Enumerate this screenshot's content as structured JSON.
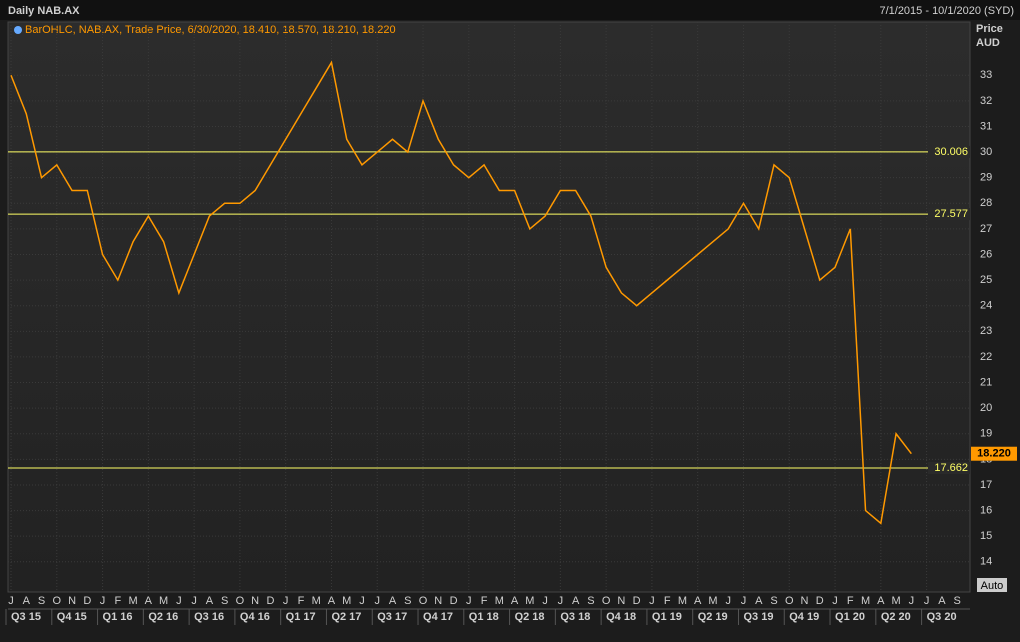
{
  "chart_data": {
    "type": "line",
    "title": "Daily NAB.AX",
    "date_range": "7/1/2015 - 10/1/2020 (SYD)",
    "legend_text": "BarOHLC, NAB.AX, Trade Price, 6/30/2020, 18.410, 18.570, 18.210, 18.220",
    "axis_label": "Price",
    "axis_unit": "AUD",
    "scale_button": "Auto",
    "categories": [
      "J",
      "A",
      "S",
      "O",
      "N",
      "D",
      "J",
      "F",
      "M",
      "A",
      "M",
      "J",
      "J",
      "A",
      "S",
      "O",
      "N",
      "D",
      "J",
      "F",
      "M",
      "A",
      "M",
      "J",
      "J",
      "A",
      "S",
      "O",
      "N",
      "D",
      "J",
      "F",
      "M",
      "A",
      "M",
      "J",
      "J",
      "A",
      "S",
      "O",
      "N",
      "D",
      "J",
      "F",
      "M",
      "A",
      "M",
      "J",
      "J",
      "A",
      "S",
      "O",
      "N",
      "D",
      "J",
      "F",
      "M",
      "A",
      "M",
      "J",
      "J",
      "A",
      "S"
    ],
    "quarters": [
      "Q3 15",
      "Q4 15",
      "Q1 16",
      "Q2 16",
      "Q3 16",
      "Q4 16",
      "Q1 17",
      "Q2 17",
      "Q3 17",
      "Q4 17",
      "Q1 18",
      "Q2 18",
      "Q3 18",
      "Q4 18",
      "Q1 19",
      "Q2 19",
      "Q3 19",
      "Q4 19",
      "Q1 20",
      "Q2 20",
      "Q3 20"
    ],
    "series": [
      {
        "name": "NAB.AX",
        "color": "#ff9900",
        "values": [
          33,
          31.5,
          29,
          29.5,
          28.5,
          28.5,
          26,
          25,
          26.5,
          27.5,
          26.5,
          24.5,
          26,
          27.5,
          28,
          28,
          28.5,
          29.5,
          30.5,
          31.5,
          32.5,
          33.5,
          30.5,
          29.5,
          30,
          30.5,
          30,
          32,
          30.5,
          29.5,
          29,
          29.5,
          28.5,
          28.5,
          27,
          27.5,
          28.5,
          28.5,
          27.5,
          25.5,
          24.5,
          24,
          24.5,
          25,
          25.5,
          26,
          26.5,
          27,
          28,
          27,
          29.5,
          29,
          27,
          25,
          25.5,
          27,
          16,
          15.5,
          19,
          18.22,
          null,
          null,
          null
        ]
      }
    ],
    "levels": [
      30.006,
      27.577,
      17.662
    ],
    "level_color": "#ffff66",
    "last_price": {
      "value": 18.22,
      "label": "18.220"
    },
    "ylim": [
      12.82,
      35.08
    ],
    "yticks": [
      14,
      15,
      16,
      17,
      18,
      19,
      20,
      21,
      22,
      23,
      24,
      25,
      26,
      27,
      28,
      29,
      30,
      31,
      32,
      33
    ],
    "grid": true
  }
}
